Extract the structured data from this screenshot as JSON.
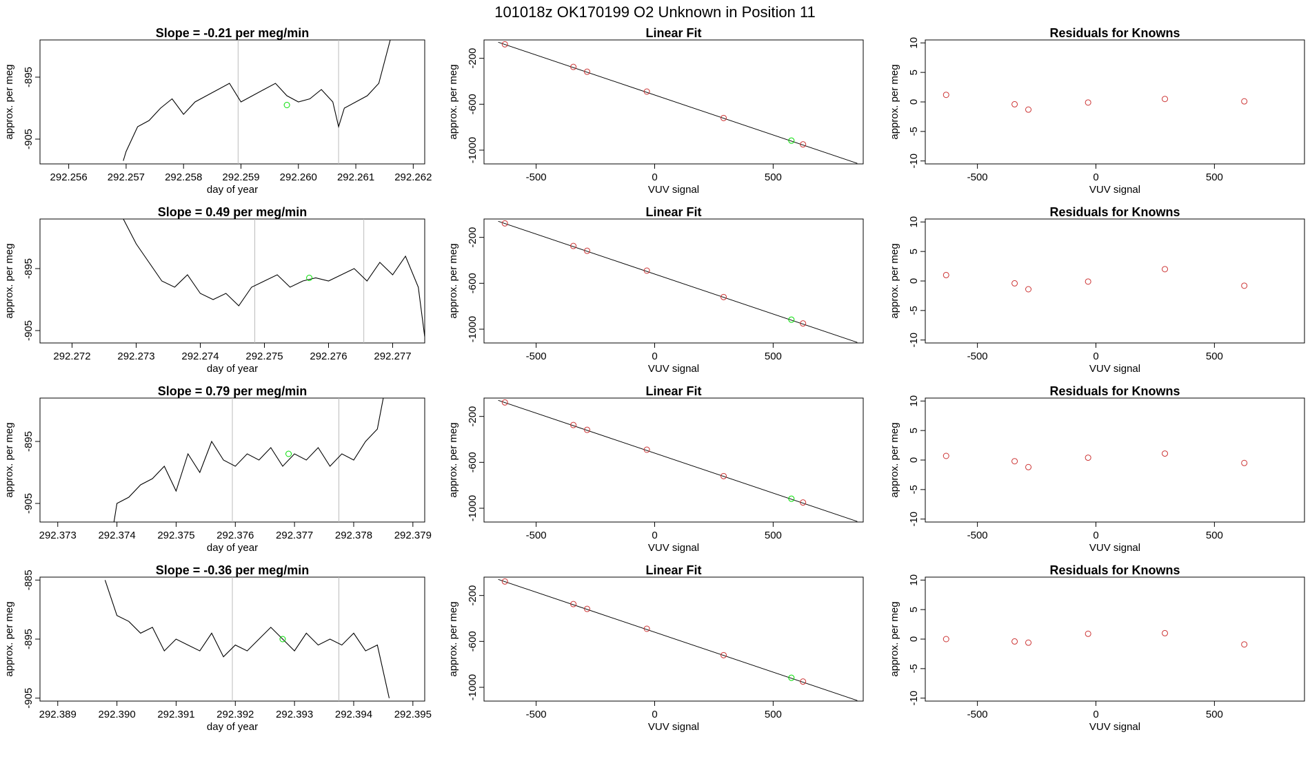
{
  "suptitle": "101018z      OK170199    O2 Unknown in Position  11",
  "chart_data": [
    {
      "type": "line",
      "panel": "timeseries",
      "row": 0,
      "title": "Slope =  -0.21  per meg/min",
      "xlabel": "day of year",
      "ylabel": "approx. per meg",
      "xlim": [
        292.2555,
        292.2622
      ],
      "ylim": [
        -909,
        -889
      ],
      "xticks": [
        "292.256",
        "292.257",
        "292.258",
        "292.259",
        "292.260",
        "292.261",
        "292.262"
      ],
      "xtick_values": [
        292.256,
        292.257,
        292.258,
        292.259,
        292.26,
        292.261,
        292.262
      ],
      "yticks": [
        "-895",
        "-905"
      ],
      "ytick_values": [
        -895,
        -905
      ],
      "vlines": [
        292.25895,
        292.2607
      ],
      "green_point": {
        "x": 292.2598,
        "y": -899.5
      },
      "series": [
        {
          "x": [
            292.25695,
            292.257,
            292.2572,
            292.2574,
            292.2576,
            292.2578,
            292.258,
            292.2582,
            292.2584,
            292.2586,
            292.2588,
            292.259,
            292.2592,
            292.2594,
            292.2596,
            292.2598,
            292.26,
            292.2602,
            292.2604,
            292.2606,
            292.2607,
            292.2608,
            292.261,
            292.2612,
            292.2614,
            292.2616
          ],
          "y": [
            -908.5,
            -907,
            -903,
            -902,
            -900,
            -898.5,
            -901,
            -899,
            -898,
            -897,
            -896,
            -899,
            -898,
            -897,
            -896,
            -898,
            -899,
            -898.5,
            -897,
            -899,
            -903,
            -900,
            -899,
            -898,
            -896,
            -889
          ]
        }
      ]
    },
    {
      "type": "scatter",
      "panel": "linear-fit",
      "row": 0,
      "title": "Linear Fit",
      "xlabel": "VUV signal",
      "ylabel": "approx. per meg",
      "xlim": [
        -720,
        880
      ],
      "ylim": [
        -1120,
        -40
      ],
      "xticks": [
        "-500",
        "0",
        "500"
      ],
      "xtick_values": [
        -500,
        0,
        500
      ],
      "yticks": [
        "-200",
        "-600",
        "-1000"
      ],
      "ytick_values": [
        -200,
        -600,
        -1000
      ],
      "fit_line": {
        "x": [
          -660,
          855
        ],
        "y": [
          -60,
          -1115
        ]
      },
      "points": [
        {
          "x": -632,
          "y": -78
        },
        {
          "x": -343,
          "y": -275
        },
        {
          "x": -285,
          "y": -317
        },
        {
          "x": -33,
          "y": -490
        },
        {
          "x": 291,
          "y": -720
        },
        {
          "x": 626,
          "y": -950
        }
      ],
      "green_point": {
        "x": 577,
        "y": -917
      }
    },
    {
      "type": "scatter",
      "panel": "residuals",
      "row": 0,
      "title": "Residuals for Knowns",
      "xlabel": "VUV signal",
      "ylabel": "approx. per meg",
      "xlim": [
        -720,
        880
      ],
      "ylim": [
        -10.5,
        10.5
      ],
      "xticks": [
        "-500",
        "0",
        "500"
      ],
      "xtick_values": [
        -500,
        0,
        500
      ],
      "yticks": [
        "10",
        "5",
        "0",
        "-5",
        "-10"
      ],
      "ytick_values": [
        10,
        5,
        0,
        -5,
        -10
      ],
      "points": [
        {
          "x": -632,
          "y": 1.2
        },
        {
          "x": -343,
          "y": -0.4
        },
        {
          "x": -285,
          "y": -1.3
        },
        {
          "x": -33,
          "y": -0.1
        },
        {
          "x": 291,
          "y": 0.5
        },
        {
          "x": 626,
          "y": 0.1
        }
      ]
    },
    {
      "type": "line",
      "panel": "timeseries",
      "row": 1,
      "title": "Slope =  0.49  per meg/min",
      "xlabel": "day of year",
      "ylabel": "approx. per meg",
      "xlim": [
        292.2715,
        292.2775
      ],
      "ylim": [
        -907,
        -887
      ],
      "xticks": [
        "292.272",
        "292.273",
        "292.274",
        "292.275",
        "292.276",
        "292.277"
      ],
      "xtick_values": [
        292.272,
        292.273,
        292.274,
        292.275,
        292.276,
        292.277
      ],
      "yticks": [
        "-895",
        "-905"
      ],
      "ytick_values": [
        -895,
        -905
      ],
      "vlines": [
        292.27485,
        292.27655
      ],
      "green_point": {
        "x": 292.2757,
        "y": -896.5
      },
      "series": [
        {
          "x": [
            292.2728,
            292.273,
            292.2732,
            292.2734,
            292.2736,
            292.2738,
            292.274,
            292.2742,
            292.2744,
            292.2746,
            292.2748,
            292.275,
            292.2752,
            292.2754,
            292.2756,
            292.2758,
            292.276,
            292.2762,
            292.2764,
            292.2766,
            292.2768,
            292.277,
            292.2772,
            292.2774,
            292.2775
          ],
          "y": [
            -887,
            -891,
            -894,
            -897,
            -898,
            -896,
            -899,
            -900,
            -899,
            -901,
            -898,
            -897,
            -896,
            -898,
            -897,
            -896.5,
            -897,
            -896,
            -895,
            -897,
            -894,
            -896,
            -893,
            -898,
            -906
          ]
        }
      ]
    },
    {
      "type": "scatter",
      "panel": "linear-fit",
      "row": 1,
      "title": "Linear Fit",
      "xlabel": "VUV signal",
      "ylabel": "approx. per meg",
      "xlim": [
        -720,
        880
      ],
      "ylim": [
        -1120,
        -40
      ],
      "xticks": [
        "-500",
        "0",
        "500"
      ],
      "xtick_values": [
        -500,
        0,
        500
      ],
      "yticks": [
        "-200",
        "-600",
        "-1000"
      ],
      "ytick_values": [
        -200,
        -600,
        -1000
      ],
      "fit_line": {
        "x": [
          -660,
          855
        ],
        "y": [
          -60,
          -1115
        ]
      },
      "points": [
        {
          "x": -632,
          "y": -78
        },
        {
          "x": -343,
          "y": -275
        },
        {
          "x": -285,
          "y": -317
        },
        {
          "x": -33,
          "y": -490
        },
        {
          "x": 291,
          "y": -720
        },
        {
          "x": 626,
          "y": -950
        }
      ],
      "green_point": {
        "x": 577,
        "y": -917
      }
    },
    {
      "type": "scatter",
      "panel": "residuals",
      "row": 1,
      "title": "Residuals for Knowns",
      "xlabel": "VUV signal",
      "ylabel": "approx. per meg",
      "xlim": [
        -720,
        880
      ],
      "ylim": [
        -10.5,
        10.5
      ],
      "xticks": [
        "-500",
        "0",
        "500"
      ],
      "xtick_values": [
        -500,
        0,
        500
      ],
      "yticks": [
        "10",
        "5",
        "0",
        "-5",
        "-10"
      ],
      "ytick_values": [
        10,
        5,
        0,
        -5,
        -10
      ],
      "points": [
        {
          "x": -632,
          "y": 1.0
        },
        {
          "x": -343,
          "y": -0.4
        },
        {
          "x": -285,
          "y": -1.4
        },
        {
          "x": -33,
          "y": -0.1
        },
        {
          "x": 291,
          "y": 2.0
        },
        {
          "x": 626,
          "y": -0.8
        }
      ]
    },
    {
      "type": "line",
      "panel": "timeseries",
      "row": 2,
      "title": "Slope =  0.79  per meg/min",
      "xlabel": "day of year",
      "ylabel": "approx. per meg",
      "xlim": [
        292.3727,
        292.3792
      ],
      "ylim": [
        -908,
        -888
      ],
      "xticks": [
        "292.373",
        "292.374",
        "292.375",
        "292.376",
        "292.377",
        "292.378",
        "292.379"
      ],
      "xtick_values": [
        292.373,
        292.374,
        292.375,
        292.376,
        292.377,
        292.378,
        292.379
      ],
      "yticks": [
        "-895",
        "-905"
      ],
      "ytick_values": [
        -895,
        -905
      ],
      "vlines": [
        292.37595,
        292.37775
      ],
      "green_point": {
        "x": 292.3769,
        "y": -897
      },
      "series": [
        {
          "x": [
            292.37395,
            292.374,
            292.3742,
            292.3744,
            292.3746,
            292.3748,
            292.375,
            292.3752,
            292.3754,
            292.3756,
            292.3758,
            292.376,
            292.3762,
            292.3764,
            292.3766,
            292.3768,
            292.377,
            292.3772,
            292.3774,
            292.3776,
            292.3778,
            292.378,
            292.3782,
            292.3784,
            292.3785
          ],
          "y": [
            -908,
            -905,
            -904,
            -902,
            -901,
            -899,
            -903,
            -897,
            -900,
            -895,
            -898,
            -899,
            -897,
            -898,
            -896,
            -899,
            -897,
            -898,
            -896,
            -899,
            -897,
            -898,
            -895,
            -893,
            -888
          ]
        }
      ]
    },
    {
      "type": "scatter",
      "panel": "linear-fit",
      "row": 2,
      "title": "Linear Fit",
      "xlabel": "VUV signal",
      "ylabel": "approx. per meg",
      "xlim": [
        -720,
        880
      ],
      "ylim": [
        -1120,
        -40
      ],
      "xticks": [
        "-500",
        "0",
        "500"
      ],
      "xtick_values": [
        -500,
        0,
        500
      ],
      "yticks": [
        "-200",
        "-600",
        "-1000"
      ],
      "ytick_values": [
        -200,
        -600,
        -1000
      ],
      "fit_line": {
        "x": [
          -660,
          855
        ],
        "y": [
          -60,
          -1115
        ]
      },
      "points": [
        {
          "x": -632,
          "y": -78
        },
        {
          "x": -343,
          "y": -275
        },
        {
          "x": -285,
          "y": -317
        },
        {
          "x": -33,
          "y": -490
        },
        {
          "x": 291,
          "y": -720
        },
        {
          "x": 626,
          "y": -950
        }
      ],
      "green_point": {
        "x": 577,
        "y": -917
      }
    },
    {
      "type": "scatter",
      "panel": "residuals",
      "row": 2,
      "title": "Residuals for Knowns",
      "xlabel": "VUV signal",
      "ylabel": "approx. per meg",
      "xlim": [
        -720,
        880
      ],
      "ylim": [
        -10.5,
        10.5
      ],
      "xticks": [
        "-500",
        "0",
        "500"
      ],
      "xtick_values": [
        -500,
        0,
        500
      ],
      "yticks": [
        "10",
        "5",
        "0",
        "-5",
        "-10"
      ],
      "ytick_values": [
        10,
        5,
        0,
        -5,
        -10
      ],
      "points": [
        {
          "x": -632,
          "y": 0.7
        },
        {
          "x": -343,
          "y": -0.2
        },
        {
          "x": -285,
          "y": -1.2
        },
        {
          "x": -33,
          "y": 0.4
        },
        {
          "x": 291,
          "y": 1.1
        },
        {
          "x": 626,
          "y": -0.5
        }
      ]
    },
    {
      "type": "line",
      "panel": "timeseries",
      "row": 3,
      "title": "Slope =  -0.36  per meg/min",
      "xlabel": "day of year",
      "ylabel": "approx. per meg",
      "xlim": [
        292.3887,
        292.3952
      ],
      "ylim": [
        -905.5,
        -884.5
      ],
      "xticks": [
        "292.389",
        "292.390",
        "292.391",
        "292.392",
        "292.393",
        "292.394",
        "292.395"
      ],
      "xtick_values": [
        292.389,
        292.39,
        292.391,
        292.392,
        292.393,
        292.394,
        292.395
      ],
      "yticks": [
        "-885",
        "-895",
        "-905"
      ],
      "ytick_values": [
        -885,
        -895,
        -905
      ],
      "vlines": [
        292.39195,
        292.39375
      ],
      "green_point": {
        "x": 292.3928,
        "y": -895
      },
      "series": [
        {
          "x": [
            292.3898,
            292.39,
            292.3902,
            292.3904,
            292.3906,
            292.3908,
            292.391,
            292.3912,
            292.3914,
            292.3916,
            292.3918,
            292.392,
            292.3922,
            292.3924,
            292.3926,
            292.3928,
            292.393,
            292.3932,
            292.3934,
            292.3936,
            292.3938,
            292.394,
            292.3942,
            292.3944,
            292.3946
          ],
          "y": [
            -885,
            -891,
            -892,
            -894,
            -893,
            -897,
            -895,
            -896,
            -897,
            -894,
            -898,
            -896,
            -897,
            -895,
            -893,
            -895,
            -897,
            -894,
            -896,
            -895,
            -896,
            -894,
            -897,
            -896,
            -905
          ]
        }
      ]
    },
    {
      "type": "scatter",
      "panel": "linear-fit",
      "row": 3,
      "title": "Linear Fit",
      "xlabel": "VUV signal",
      "ylabel": "approx. per meg",
      "xlim": [
        -720,
        880
      ],
      "ylim": [
        -1120,
        -40
      ],
      "xticks": [
        "-500",
        "0",
        "500"
      ],
      "xtick_values": [
        -500,
        0,
        500
      ],
      "yticks": [
        "-200",
        "-600",
        "-1000"
      ],
      "ytick_values": [
        -200,
        -600,
        -1000
      ],
      "fit_line": {
        "x": [
          -660,
          855
        ],
        "y": [
          -60,
          -1115
        ]
      },
      "points": [
        {
          "x": -632,
          "y": -78
        },
        {
          "x": -343,
          "y": -275
        },
        {
          "x": -285,
          "y": -317
        },
        {
          "x": -33,
          "y": -490
        },
        {
          "x": 291,
          "y": -720
        },
        {
          "x": 626,
          "y": -950
        }
      ],
      "green_point": {
        "x": 577,
        "y": -917
      }
    },
    {
      "type": "scatter",
      "panel": "residuals",
      "row": 3,
      "title": "Residuals for Knowns",
      "xlabel": "VUV signal",
      "ylabel": "approx. per meg",
      "xlim": [
        -720,
        880
      ],
      "ylim": [
        -10.5,
        10.5
      ],
      "xticks": [
        "-500",
        "0",
        "500"
      ],
      "xtick_values": [
        -500,
        0,
        500
      ],
      "yticks": [
        "10",
        "5",
        "0",
        "-5",
        "-10"
      ],
      "ytick_values": [
        10,
        5,
        0,
        -5,
        -10
      ],
      "points": [
        {
          "x": -632,
          "y": 0.0
        },
        {
          "x": -343,
          "y": -0.4
        },
        {
          "x": -285,
          "y": -0.6
        },
        {
          "x": -33,
          "y": 0.9
        },
        {
          "x": 291,
          "y": 1.0
        },
        {
          "x": 626,
          "y": -0.9
        }
      ]
    }
  ],
  "colors": {
    "line": "#000000",
    "vline": "#bbbbbb",
    "green_point": "#00dd00",
    "red_point": "#cc3333",
    "fit_line": "#000000",
    "axis": "#000000"
  }
}
